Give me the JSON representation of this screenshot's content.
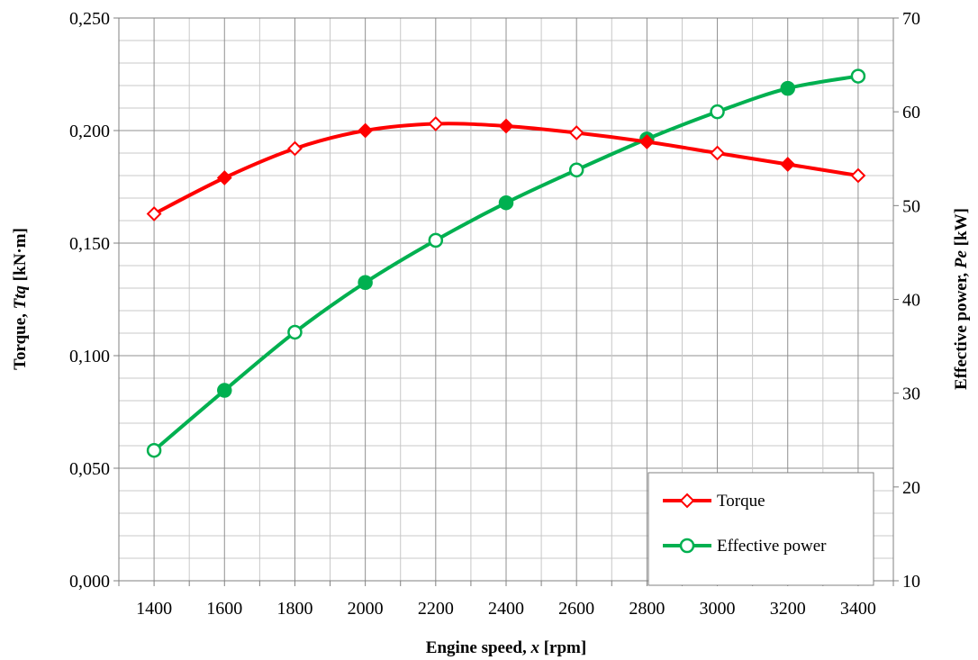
{
  "chart_data": {
    "type": "line",
    "title": "",
    "x": [
      1400,
      1600,
      1800,
      2000,
      2200,
      2400,
      2600,
      2800,
      3000,
      3200,
      3400
    ],
    "xlabel": "Engine speed, x [rpm]",
    "xlabel_parts": {
      "pre": "Engine speed, ",
      "var": "x",
      "post": " [rpm]"
    },
    "xlim": [
      1300,
      3500
    ],
    "xticks": [
      "1400",
      "1600",
      "1800",
      "2000",
      "2200",
      "2400",
      "2600",
      "2800",
      "3000",
      "3200",
      "3400"
    ],
    "ylabel_left": "Torque, Ttq [kN·m]",
    "ylabel_left_parts": {
      "pre": "Torque, ",
      "var": "Ttq",
      "post": " [kN·m]"
    },
    "ylim_left": [
      0,
      0.25
    ],
    "yticks_left": [
      "0,000",
      "0,050",
      "0,100",
      "0,150",
      "0,200",
      "0,250"
    ],
    "ylabel_right": "Effective power, Pe [kW]",
    "ylabel_right_parts": {
      "pre": "Effective power, ",
      "var": "Pe",
      "post": " [kW]"
    },
    "ylim_right": [
      10,
      70
    ],
    "yticks_right": [
      "10",
      "20",
      "30",
      "40",
      "50",
      "60",
      "70"
    ],
    "grid": true,
    "legend_position": "bottom-right",
    "series": [
      {
        "name": "Torque",
        "axis": "left",
        "color": "#ff0000",
        "marker": "diamond",
        "values": [
          0.163,
          0.179,
          0.192,
          0.2,
          0.203,
          0.202,
          0.199,
          0.195,
          0.19,
          0.185,
          0.18
        ]
      },
      {
        "name": "Effective power",
        "axis": "right",
        "color": "#00b050",
        "marker": "circle",
        "values": [
          23.9,
          30.3,
          36.5,
          41.8,
          46.3,
          50.3,
          53.8,
          57.1,
          60.0,
          62.5,
          63.8
        ]
      }
    ]
  }
}
